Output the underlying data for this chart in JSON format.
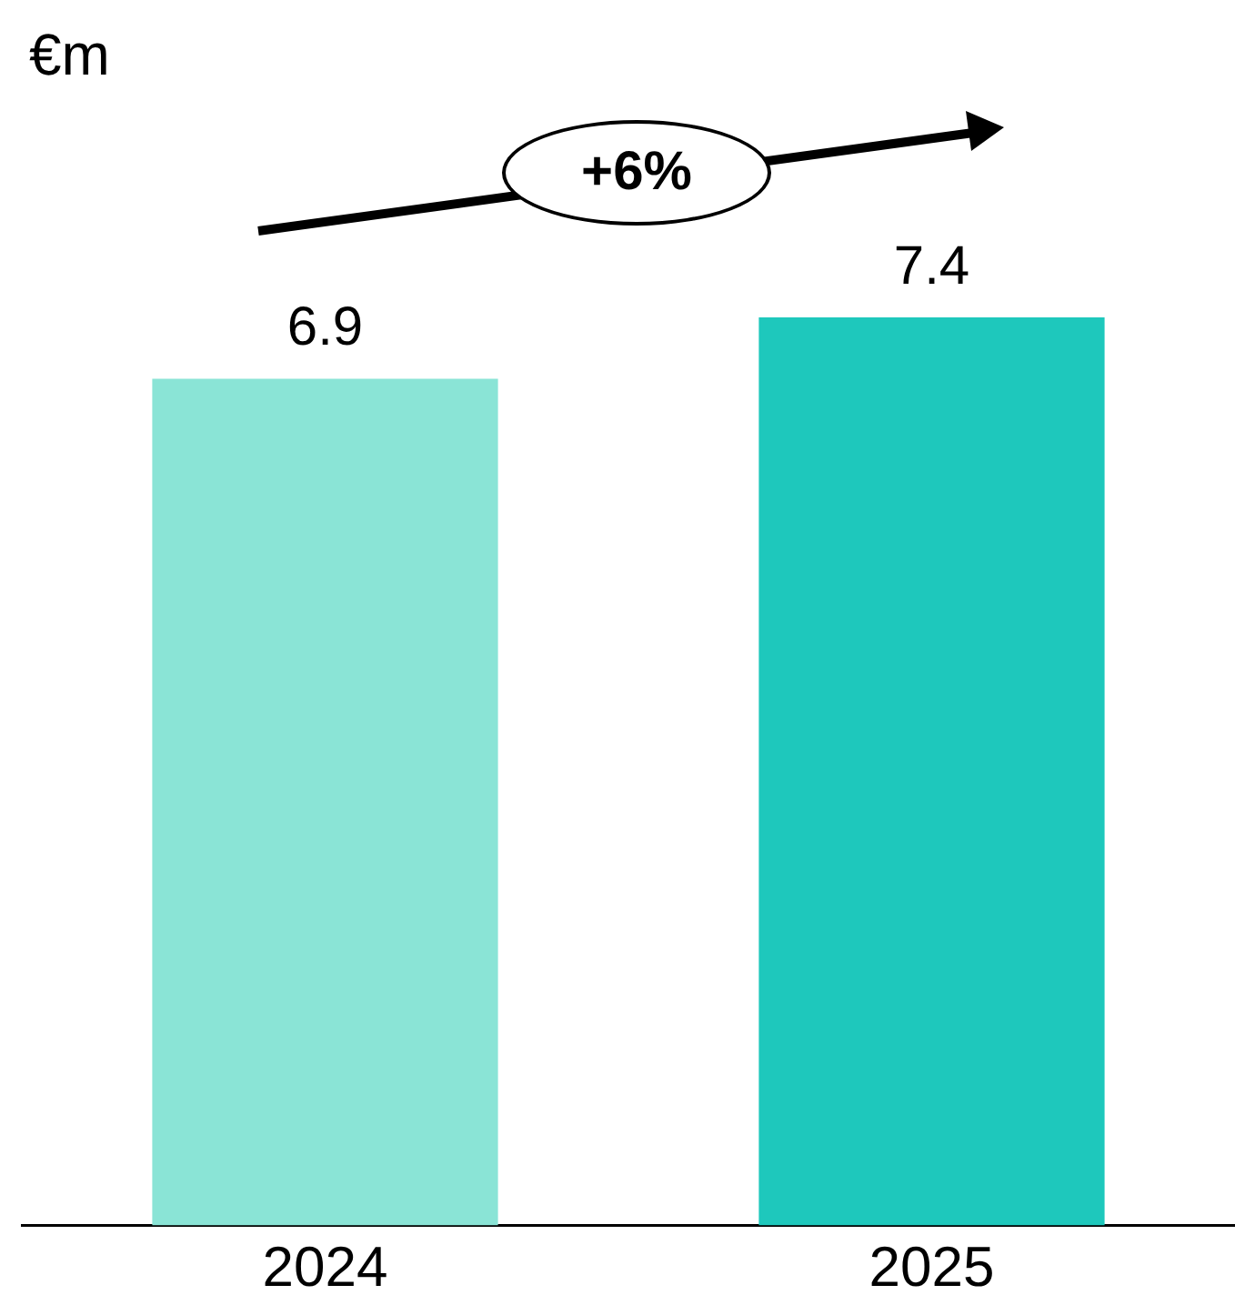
{
  "chart_data": {
    "type": "bar",
    "ylabel": "€m",
    "categories": [
      "2024",
      "2025"
    ],
    "values": [
      6.9,
      7.4
    ],
    "colors": [
      "#8ae4d6",
      "#1ec8bc"
    ],
    "data_labels": true,
    "grid": false,
    "legend": false,
    "annotations": [
      "+6%"
    ]
  }
}
